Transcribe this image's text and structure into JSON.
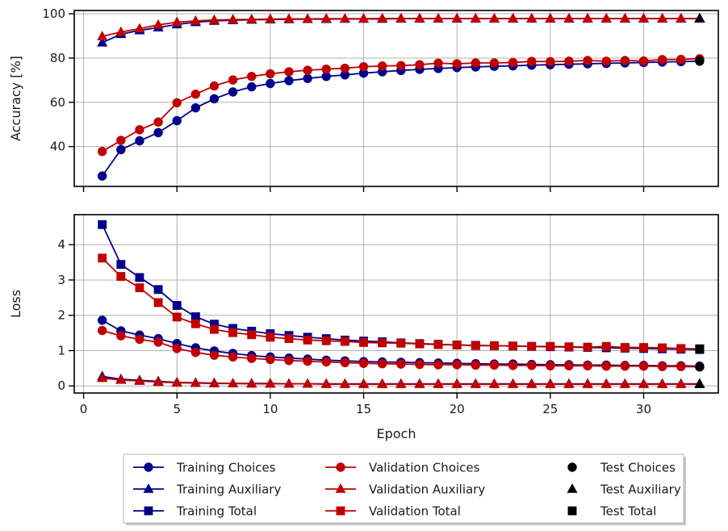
{
  "chart_data": [
    {
      "type": "line",
      "ylabel": "Accuracy [%]",
      "xlabel": "",
      "xlim": [
        -0.5,
        34
      ],
      "ylim": [
        22,
        101.5
      ],
      "yticks": [
        40,
        60,
        80,
        100
      ],
      "xticks": [
        0,
        5,
        10,
        15,
        20,
        25,
        30
      ],
      "show_xtick_labels": false,
      "grid": true,
      "series": [
        {
          "name": "Training Auxiliary",
          "color": "#00008b",
          "marker": "triangle",
          "x": [
            1,
            2,
            3,
            4,
            5,
            6,
            7,
            8,
            9,
            10,
            11,
            12,
            13,
            14,
            15,
            16,
            17,
            18,
            19,
            20,
            21,
            22,
            23,
            24,
            25,
            26,
            27,
            28,
            29,
            30,
            31,
            32,
            33
          ],
          "values": [
            87,
            90.8,
            92.5,
            93.8,
            95.2,
            96.2,
            96.8,
            97.1,
            97.3,
            97.4,
            97.5,
            97.6,
            97.6,
            97.7,
            97.7,
            97.7,
            97.8,
            97.8,
            97.8,
            97.8,
            97.8,
            97.8,
            97.8,
            97.8,
            97.8,
            97.8,
            97.8,
            97.8,
            97.8,
            97.8,
            97.8,
            97.8,
            97.8
          ]
        },
        {
          "name": "Validation Auxiliary",
          "color": "#c00000",
          "marker": "triangle",
          "x": [
            1,
            2,
            3,
            4,
            5,
            6,
            7,
            8,
            9,
            10,
            11,
            12,
            13,
            14,
            15,
            16,
            17,
            18,
            19,
            20,
            21,
            22,
            23,
            24,
            25,
            26,
            27,
            28,
            29,
            30,
            31,
            32,
            33
          ],
          "values": [
            89.8,
            91.8,
            93.3,
            95,
            96.2,
            96.8,
            97.2,
            97.4,
            97.5,
            97.6,
            97.7,
            97.7,
            97.8,
            97.8,
            97.8,
            97.9,
            97.9,
            97.9,
            97.9,
            97.9,
            97.9,
            97.9,
            97.9,
            97.9,
            97.9,
            97.9,
            97.9,
            97.9,
            97.9,
            97.9,
            97.9,
            97.9,
            97.9
          ]
        },
        {
          "name": "Training Choices",
          "color": "#00008b",
          "marker": "circle",
          "x": [
            1,
            2,
            3,
            4,
            5,
            6,
            7,
            8,
            9,
            10,
            11,
            12,
            13,
            14,
            15,
            16,
            17,
            18,
            19,
            20,
            21,
            22,
            23,
            24,
            25,
            26,
            27,
            28,
            29,
            30,
            31,
            32,
            33
          ],
          "values": [
            26.7,
            38.6,
            42.6,
            46.3,
            51.7,
            57.5,
            61.6,
            64.7,
            67,
            68.5,
            69.8,
            70.8,
            71.7,
            72.4,
            73.2,
            73.8,
            74.4,
            74.9,
            75.3,
            75.7,
            76,
            76.3,
            76.5,
            76.8,
            77,
            77.2,
            77.4,
            77.6,
            77.8,
            78,
            78.2,
            78.4,
            78.6
          ]
        },
        {
          "name": "Validation Choices",
          "color": "#c00000",
          "marker": "circle",
          "x": [
            1,
            2,
            3,
            4,
            5,
            6,
            7,
            8,
            9,
            10,
            11,
            12,
            13,
            14,
            15,
            16,
            17,
            18,
            19,
            20,
            21,
            22,
            23,
            24,
            25,
            26,
            27,
            28,
            29,
            30,
            31,
            32,
            33
          ],
          "values": [
            37.8,
            42.8,
            47.6,
            51.1,
            59.8,
            63.7,
            67.4,
            70.1,
            71.7,
            72.9,
            73.8,
            74.5,
            75,
            75.4,
            76.1,
            76.4,
            76.6,
            77,
            77.7,
            77.4,
            77.8,
            77.8,
            78,
            78.5,
            78.4,
            78.6,
            78.9,
            78.6,
            78.9,
            78.7,
            79.3,
            79.4,
            79.7
          ]
        },
        {
          "name": "Test Choices",
          "color": "#000000",
          "marker": "circle",
          "x": [
            33
          ],
          "values": [
            78.8
          ]
        },
        {
          "name": "Test Auxiliary",
          "color": "#000000",
          "marker": "triangle",
          "x": [
            33
          ],
          "values": [
            97.9
          ]
        }
      ]
    },
    {
      "type": "line",
      "ylabel": "Loss",
      "xlabel": "Epoch",
      "xlim": [
        -0.5,
        34
      ],
      "ylim": [
        -0.2,
        4.85
      ],
      "yticks": [
        0,
        1,
        2,
        3,
        4
      ],
      "xticks": [
        0,
        5,
        10,
        15,
        20,
        25,
        30
      ],
      "show_xtick_labels": true,
      "grid": true,
      "series": [
        {
          "name": "Training Total",
          "color": "#00008b",
          "marker": "square",
          "x": [
            1,
            2,
            3,
            4,
            5,
            6,
            7,
            8,
            9,
            10,
            11,
            12,
            13,
            14,
            15,
            16,
            17,
            18,
            19,
            20,
            21,
            22,
            23,
            24,
            25,
            26,
            27,
            28,
            29,
            30,
            31,
            32,
            33
          ],
          "values": [
            4.57,
            3.44,
            3.07,
            2.73,
            2.28,
            1.96,
            1.75,
            1.63,
            1.55,
            1.48,
            1.43,
            1.38,
            1.34,
            1.3,
            1.27,
            1.25,
            1.22,
            1.2,
            1.18,
            1.16,
            1.15,
            1.14,
            1.13,
            1.12,
            1.11,
            1.1,
            1.09,
            1.08,
            1.07,
            1.06,
            1.05,
            1.04,
            1.03
          ]
        },
        {
          "name": "Validation Total",
          "color": "#c00000",
          "marker": "square",
          "x": [
            1,
            2,
            3,
            4,
            5,
            6,
            7,
            8,
            9,
            10,
            11,
            12,
            13,
            14,
            15,
            16,
            17,
            18,
            19,
            20,
            21,
            22,
            23,
            24,
            25,
            26,
            27,
            28,
            29,
            30,
            31,
            32,
            33
          ],
          "values": [
            3.62,
            3.1,
            2.78,
            2.36,
            1.95,
            1.76,
            1.6,
            1.51,
            1.45,
            1.38,
            1.34,
            1.3,
            1.28,
            1.26,
            1.23,
            1.22,
            1.21,
            1.19,
            1.17,
            1.16,
            1.14,
            1.14,
            1.13,
            1.12,
            1.12,
            1.11,
            1.1,
            1.12,
            1.09,
            1.09,
            1.08,
            1.06,
            1.05
          ]
        },
        {
          "name": "Training Choices",
          "color": "#00008b",
          "marker": "circle",
          "x": [
            1,
            2,
            3,
            4,
            5,
            6,
            7,
            8,
            9,
            10,
            11,
            12,
            13,
            14,
            15,
            16,
            17,
            18,
            19,
            20,
            21,
            22,
            23,
            24,
            25,
            26,
            27,
            28,
            29,
            30,
            31,
            32,
            33
          ],
          "values": [
            1.86,
            1.56,
            1.44,
            1.34,
            1.2,
            1.08,
            0.99,
            0.92,
            0.86,
            0.82,
            0.79,
            0.76,
            0.73,
            0.71,
            0.69,
            0.68,
            0.67,
            0.66,
            0.65,
            0.64,
            0.63,
            0.62,
            0.62,
            0.61,
            0.6,
            0.6,
            0.59,
            0.59,
            0.58,
            0.58,
            0.57,
            0.57,
            0.56
          ]
        },
        {
          "name": "Validation Choices",
          "color": "#c00000",
          "marker": "circle",
          "x": [
            1,
            2,
            3,
            4,
            5,
            6,
            7,
            8,
            9,
            10,
            11,
            12,
            13,
            14,
            15,
            16,
            17,
            18,
            19,
            20,
            21,
            22,
            23,
            24,
            25,
            26,
            27,
            28,
            29,
            30,
            31,
            32,
            33
          ],
          "values": [
            1.57,
            1.42,
            1.32,
            1.24,
            1.06,
            0.95,
            0.87,
            0.82,
            0.78,
            0.75,
            0.72,
            0.7,
            0.68,
            0.66,
            0.64,
            0.63,
            0.62,
            0.61,
            0.6,
            0.6,
            0.59,
            0.59,
            0.58,
            0.58,
            0.57,
            0.57,
            0.57,
            0.56,
            0.56,
            0.56,
            0.55,
            0.55,
            0.54
          ]
        },
        {
          "name": "Training Auxiliary",
          "color": "#00008b",
          "marker": "triangle",
          "x": [
            1,
            2,
            3,
            4,
            5,
            6,
            7,
            8,
            9,
            10,
            11,
            12,
            13,
            14,
            15,
            16,
            17,
            18,
            19,
            20,
            21,
            22,
            23,
            24,
            25,
            26,
            27,
            28,
            29,
            30,
            31,
            32,
            33
          ],
          "values": [
            0.27,
            0.19,
            0.16,
            0.13,
            0.1,
            0.09,
            0.08,
            0.07,
            0.07,
            0.07,
            0.06,
            0.06,
            0.06,
            0.06,
            0.06,
            0.06,
            0.06,
            0.06,
            0.06,
            0.06,
            0.06,
            0.06,
            0.06,
            0.06,
            0.06,
            0.06,
            0.06,
            0.06,
            0.06,
            0.06,
            0.06,
            0.06,
            0.06
          ]
        },
        {
          "name": "Validation Auxiliary",
          "color": "#c00000",
          "marker": "triangle",
          "x": [
            1,
            2,
            3,
            4,
            5,
            6,
            7,
            8,
            9,
            10,
            11,
            12,
            13,
            14,
            15,
            16,
            17,
            18,
            19,
            20,
            21,
            22,
            23,
            24,
            25,
            26,
            27,
            28,
            29,
            30,
            31,
            32,
            33
          ],
          "values": [
            0.22,
            0.17,
            0.14,
            0.11,
            0.09,
            0.08,
            0.07,
            0.07,
            0.06,
            0.06,
            0.06,
            0.06,
            0.05,
            0.05,
            0.05,
            0.05,
            0.05,
            0.05,
            0.05,
            0.05,
            0.05,
            0.05,
            0.05,
            0.05,
            0.05,
            0.05,
            0.05,
            0.05,
            0.05,
            0.05,
            0.05,
            0.05,
            0.05
          ]
        },
        {
          "name": "Test Total",
          "color": "#000000",
          "marker": "square",
          "x": [
            33
          ],
          "values": [
            1.05
          ]
        },
        {
          "name": "Test Choices",
          "color": "#000000",
          "marker": "circle",
          "x": [
            33
          ],
          "values": [
            0.54
          ]
        },
        {
          "name": "Test Auxiliary",
          "color": "#000000",
          "marker": "triangle",
          "x": [
            33
          ],
          "values": [
            0.05
          ]
        }
      ]
    }
  ],
  "legend": {
    "placement": "bottom-center",
    "entries": [
      {
        "label": "Training Choices",
        "color": "#00008b",
        "marker": "circle",
        "line": true
      },
      {
        "label": "Training Auxiliary",
        "color": "#00008b",
        "marker": "triangle",
        "line": true
      },
      {
        "label": "Training Total",
        "color": "#00008b",
        "marker": "square",
        "line": true
      },
      {
        "label": "Validation Choices",
        "color": "#c00000",
        "marker": "circle",
        "line": true
      },
      {
        "label": "Validation Auxiliary",
        "color": "#c00000",
        "marker": "triangle",
        "line": true
      },
      {
        "label": "Validation Total",
        "color": "#c00000",
        "marker": "square",
        "line": true
      },
      {
        "label": "Test Choices",
        "color": "#000000",
        "marker": "circle",
        "line": false
      },
      {
        "label": "Test Auxiliary",
        "color": "#000000",
        "marker": "triangle",
        "line": false
      },
      {
        "label": "Test Total",
        "color": "#000000",
        "marker": "square",
        "line": false
      }
    ]
  }
}
